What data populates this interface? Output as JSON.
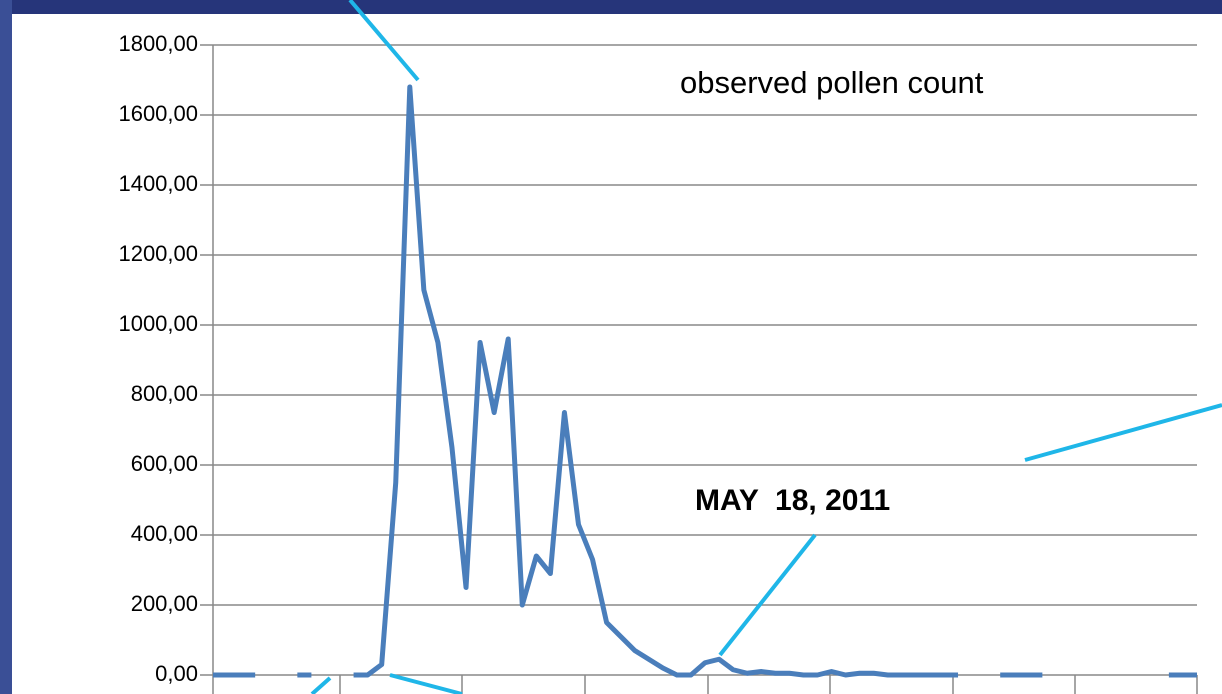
{
  "chart_data": {
    "type": "line",
    "annotations": [
      "observed pollen count",
      "MAY  18, 2011"
    ],
    "categories": [
      null,
      null,
      null,
      null,
      null,
      null,
      null,
      null,
      null,
      null,
      null,
      null,
      null,
      null,
      null,
      null,
      null,
      null,
      null,
      null,
      null,
      null,
      null,
      null,
      null,
      null,
      null,
      null,
      null,
      null,
      null,
      null,
      null,
      null,
      null,
      null,
      null,
      null,
      null,
      null,
      null,
      null,
      null,
      null,
      null,
      null,
      null,
      null,
      null,
      null,
      null,
      null,
      null,
      null,
      null,
      null,
      null,
      null,
      null,
      null,
      null,
      null,
      null,
      null,
      null,
      null,
      null,
      null,
      null,
      null,
      null
    ],
    "series": [
      {
        "color": "#4a7ebb",
        "values": [
          0,
          0,
          0,
          0,
          null,
          null,
          0,
          0,
          null,
          null,
          0,
          0,
          30,
          550,
          1680,
          1100,
          950,
          650,
          250,
          950,
          750,
          960,
          200,
          340,
          290,
          750,
          430,
          330,
          150,
          110,
          70,
          45,
          20,
          0,
          0,
          35,
          45,
          15,
          5,
          10,
          5,
          5,
          0,
          0,
          10,
          0,
          5,
          5,
          0,
          0,
          0,
          0,
          0,
          0,
          null,
          null,
          0,
          0,
          0,
          0,
          null,
          null,
          null,
          null,
          null,
          null,
          null,
          null,
          0,
          0,
          0
        ]
      }
    ],
    "ylim": [
      0,
      1800
    ],
    "yticks": [
      {
        "value": 0,
        "label": "0,00"
      },
      {
        "value": 200,
        "label": "200,00"
      },
      {
        "value": 400,
        "label": "400,00"
      },
      {
        "value": 600,
        "label": "600,00"
      },
      {
        "value": 800,
        "label": "800,00"
      },
      {
        "value": 1000,
        "label": "1000,00"
      },
      {
        "value": 1200,
        "label": "1200,00"
      },
      {
        "value": 1400,
        "label": "1400,00"
      },
      {
        "value": 1600,
        "label": "1600,00"
      },
      {
        "value": 1800,
        "label": "1800,00"
      }
    ],
    "grid": true
  }
}
